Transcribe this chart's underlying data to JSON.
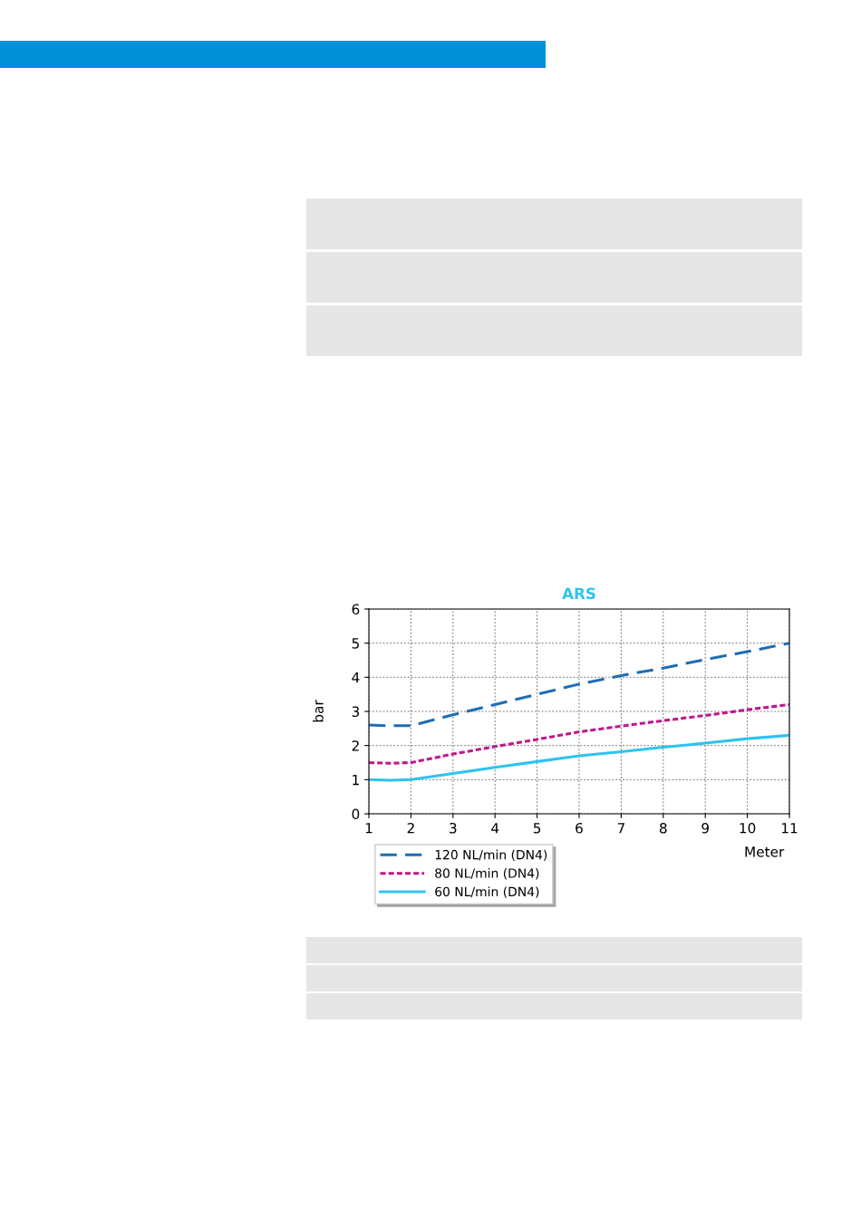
{
  "chart_data": {
    "type": "line",
    "title": "ARS",
    "xlabel": "Meter",
    "ylabel": "bar",
    "x": [
      1,
      1.5,
      2,
      3,
      4,
      5,
      6,
      7,
      8,
      9,
      10,
      11
    ],
    "series": [
      {
        "name": "120 NL/min (DN4)",
        "color": "#1f6db5",
        "line_style": "dashed",
        "values": [
          2.6,
          2.58,
          2.58,
          2.9,
          3.2,
          3.5,
          3.8,
          4.05,
          4.27,
          4.52,
          4.75,
          5.0
        ]
      },
      {
        "name": "80 NL/min (DN4)",
        "color": "#c0188c",
        "line_style": "dotted",
        "values": [
          1.5,
          1.48,
          1.5,
          1.75,
          1.97,
          2.18,
          2.4,
          2.57,
          2.73,
          2.88,
          3.05,
          3.2
        ]
      },
      {
        "name": "60 NL/min (DN4)",
        "color": "#2ec4ee",
        "line_style": "solid",
        "values": [
          1.0,
          0.98,
          1.0,
          1.18,
          1.36,
          1.53,
          1.7,
          1.82,
          1.95,
          2.07,
          2.2,
          2.3
        ]
      }
    ],
    "xlim": [
      1,
      11
    ],
    "xticks": [
      1,
      2,
      3,
      4,
      5,
      6,
      7,
      8,
      9,
      10,
      11
    ],
    "ylim": [
      0,
      6
    ],
    "yticks": [
      0,
      1,
      2,
      3,
      4,
      5,
      6
    ],
    "grid": true,
    "legend": "bottom left",
    "marker": "none"
  }
}
